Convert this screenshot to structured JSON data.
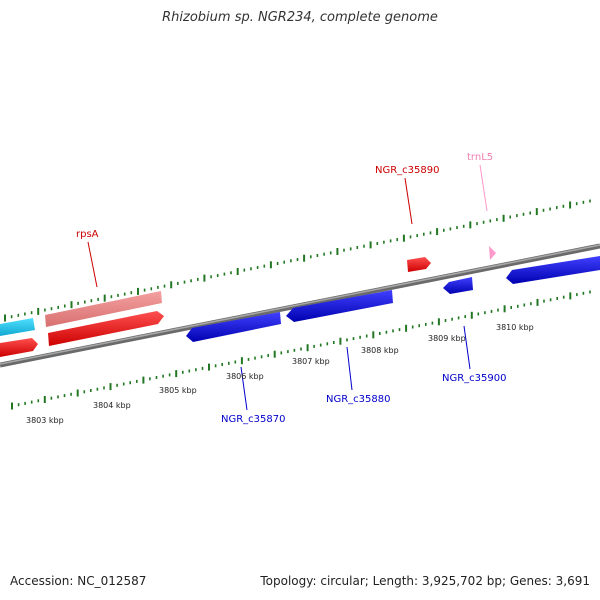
{
  "title": "Rhizobium sp. NGR234, complete genome",
  "accession": "Accession: NC_012587",
  "summary": "Topology: circular; Length: 3,925,702 bp; Genes: 3,691",
  "colors": {
    "plus_strand": "#ff0000",
    "plus_strand_rrna": "#ee8888",
    "minus_strand": "#0000ee",
    "cyan_feature": "#22ccee",
    "trna": "#ff99cc",
    "ticks": "#227722",
    "backbone": "#888888"
  },
  "kbp_labels": [
    "3803 kbp",
    "3804 kbp",
    "3805 kbp",
    "3806 kbp",
    "3807 kbp",
    "3808 kbp",
    "3809 kbp",
    "3810 kbp"
  ],
  "gene_labels": {
    "rpsA": "rpsA",
    "c35890": "NGR_c35890",
    "trnL5": "trnL5",
    "c35870": "NGR_c35870",
    "c35880": "NGR_c35880",
    "c35900": "NGR_c35900"
  }
}
